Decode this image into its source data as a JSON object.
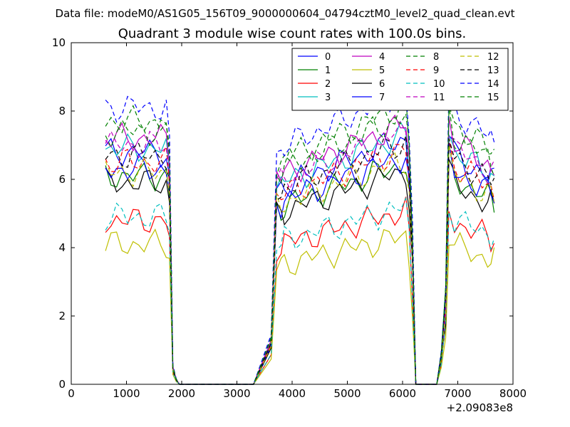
{
  "suptitle": "Data file: modeM0/AS1G05_156T09_9000000604_04794cztM0_level2_quad_clean.evt",
  "chart_data": {
    "type": "line",
    "title": "Quadrant 3 module wise count rates with 100.0s bins.",
    "xlabel": "",
    "ylabel": "",
    "xlim": [
      0,
      8000
    ],
    "ylim": [
      0,
      10
    ],
    "x_offset_label": "+2.09083e8",
    "xticks": [
      0,
      1000,
      2000,
      3000,
      4000,
      5000,
      6000,
      7000,
      8000
    ],
    "yticks": [
      0,
      2,
      4,
      6,
      8,
      10
    ],
    "grid": false,
    "legend": {
      "placement": "top-right",
      "columns": 4
    },
    "x": [
      620,
      720,
      820,
      920,
      1020,
      1120,
      1220,
      1320,
      1420,
      1520,
      1620,
      1720,
      1780,
      1840,
      1900,
      1960,
      2100,
      2400,
      2700,
      3000,
      3300,
      3620,
      3720,
      3800,
      3860,
      3960,
      4060,
      4160,
      4260,
      4360,
      4460,
      4560,
      4660,
      4760,
      4860,
      4960,
      5060,
      5160,
      5260,
      5360,
      5460,
      5560,
      5660,
      5760,
      5860,
      5960,
      6060,
      6120,
      6180,
      6240,
      6340,
      6500,
      6620,
      6700,
      6780,
      6840,
      6940,
      7040,
      7140,
      7240,
      7340,
      7440,
      7540,
      7600,
      7660
    ],
    "series": [
      {
        "name": "0",
        "color": "#0000ff",
        "dash": "solid",
        "level": 6.8
      },
      {
        "name": "1",
        "color": "#008000",
        "dash": "solid",
        "level": 6.1
      },
      {
        "name": "2",
        "color": "#ff0000",
        "dash": "solid",
        "level": 4.8
      },
      {
        "name": "3",
        "color": "#00bfbf",
        "dash": "solid",
        "level": 6.9
      },
      {
        "name": "4",
        "color": "#bf00bf",
        "dash": "solid",
        "level": 7.2
      },
      {
        "name": "5",
        "color": "#bfbf00",
        "dash": "solid",
        "level": 4.1
      },
      {
        "name": "6",
        "color": "#000000",
        "dash": "solid",
        "level": 5.9
      },
      {
        "name": "7",
        "color": "#0000ff",
        "dash": "solid",
        "level": 6.3
      },
      {
        "name": "8",
        "color": "#008000",
        "dash": "dashed",
        "level": 7.7
      },
      {
        "name": "9",
        "color": "#ff0000",
        "dash": "dashed",
        "level": 6.5
      },
      {
        "name": "10",
        "color": "#00bfbf",
        "dash": "dashed",
        "level": 4.9
      },
      {
        "name": "11",
        "color": "#bf00bf",
        "dash": "dashed",
        "level": 7.0
      },
      {
        "name": "12",
        "color": "#bfbf00",
        "dash": "dashed",
        "level": 6.2
      },
      {
        "name": "13",
        "color": "#000000",
        "dash": "dashed",
        "level": 6.7
      },
      {
        "name": "14",
        "color": "#0000ff",
        "dash": "dashed",
        "level": 8.1
      },
      {
        "name": "15",
        "color": "#008000",
        "dash": "dashed",
        "level": 7.4
      }
    ]
  }
}
